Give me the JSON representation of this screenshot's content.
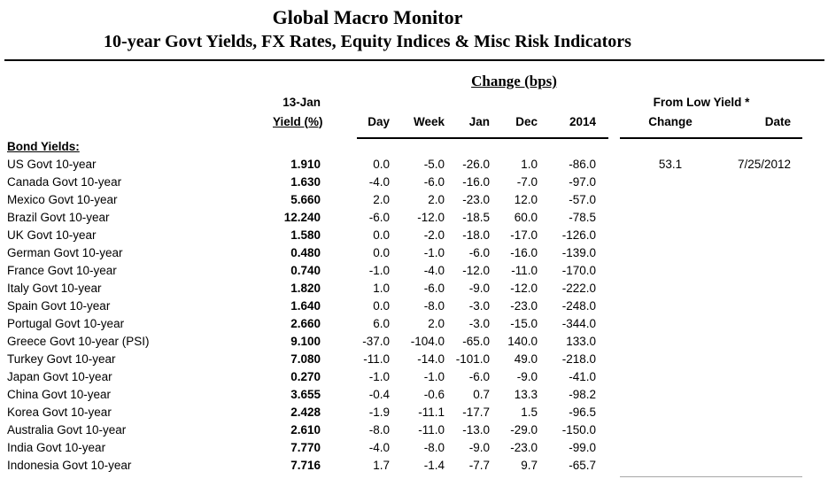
{
  "title": "Global Macro Monitor",
  "subtitle": "10-year Govt Yields, FX Rates, Equity Indices & Misc Risk Indicators",
  "table": {
    "change_bps_header": "Change (bps)",
    "col_date_label": "13-Jan",
    "col_yield_label": "Yield (%)",
    "col_day": "Day",
    "col_week": "Week",
    "col_jan": "Jan",
    "col_dec": "Dec",
    "col_2014": "2014",
    "from_low_header": "From Low Yield *",
    "col_fl_change": "Change",
    "col_fl_date": "Date",
    "section_label": "Bond Yields:",
    "rows": [
      {
        "name": "US Govt 10-year",
        "yield": "1.910",
        "day": "0.0",
        "week": "-5.0",
        "jan": "-26.0",
        "dec": "1.0",
        "y2014": "-86.0",
        "fl_change": "53.1",
        "fl_date": "7/25/2012"
      },
      {
        "name": "Canada Govt 10-year",
        "yield": "1.630",
        "day": "-4.0",
        "week": "-6.0",
        "jan": "-16.0",
        "dec": "-7.0",
        "y2014": "-97.0",
        "fl_change": "",
        "fl_date": ""
      },
      {
        "name": "Mexico Govt 10-year",
        "yield": "5.660",
        "day": "2.0",
        "week": "2.0",
        "jan": "-23.0",
        "dec": "12.0",
        "y2014": "-57.0",
        "fl_change": "",
        "fl_date": ""
      },
      {
        "name": "Brazil Govt 10-year",
        "yield": "12.240",
        "day": "-6.0",
        "week": "-12.0",
        "jan": "-18.5",
        "dec": "60.0",
        "y2014": "-78.5",
        "fl_change": "",
        "fl_date": ""
      },
      {
        "name": "UK Govt 10-year",
        "yield": "1.580",
        "day": "0.0",
        "week": "-2.0",
        "jan": "-18.0",
        "dec": "-17.0",
        "y2014": "-126.0",
        "fl_change": "",
        "fl_date": ""
      },
      {
        "name": "German Govt 10-year",
        "yield": "0.480",
        "day": "0.0",
        "week": "-1.0",
        "jan": "-6.0",
        "dec": "-16.0",
        "y2014": "-139.0",
        "fl_change": "",
        "fl_date": ""
      },
      {
        "name": "France Govt 10-year",
        "yield": "0.740",
        "day": "-1.0",
        "week": "-4.0",
        "jan": "-12.0",
        "dec": "-11.0",
        "y2014": "-170.0",
        "fl_change": "",
        "fl_date": ""
      },
      {
        "name": "Italy Govt 10-year",
        "yield": "1.820",
        "day": "1.0",
        "week": "-6.0",
        "jan": "-9.0",
        "dec": "-12.0",
        "y2014": "-222.0",
        "fl_change": "",
        "fl_date": ""
      },
      {
        "name": "Spain Govt 10-year",
        "yield": "1.640",
        "day": "0.0",
        "week": "-8.0",
        "jan": "-3.0",
        "dec": "-23.0",
        "y2014": "-248.0",
        "fl_change": "",
        "fl_date": ""
      },
      {
        "name": "Portugal Govt 10-year",
        "yield": "2.660",
        "day": "6.0",
        "week": "2.0",
        "jan": "-3.0",
        "dec": "-15.0",
        "y2014": "-344.0",
        "fl_change": "",
        "fl_date": ""
      },
      {
        "name": "Greece Govt 10-year (PSI)",
        "yield": "9.100",
        "day": "-37.0",
        "week": "-104.0",
        "jan": "-65.0",
        "dec": "140.0",
        "y2014": "133.0",
        "fl_change": "",
        "fl_date": ""
      },
      {
        "name": "Turkey Govt 10-year",
        "yield": "7.080",
        "day": "-11.0",
        "week": "-14.0",
        "jan": "-101.0",
        "dec": "49.0",
        "y2014": "-218.0",
        "fl_change": "",
        "fl_date": ""
      },
      {
        "name": "Japan Govt 10-year",
        "yield": "0.270",
        "day": "-1.0",
        "week": "-1.0",
        "jan": "-6.0",
        "dec": "-9.0",
        "y2014": "-41.0",
        "fl_change": "",
        "fl_date": ""
      },
      {
        "name": "China Govt 10-year",
        "yield": "3.655",
        "day": "-0.4",
        "week": "-0.6",
        "jan": "0.7",
        "dec": "13.3",
        "y2014": "-98.2",
        "fl_change": "",
        "fl_date": ""
      },
      {
        "name": "Korea Govt 10-year",
        "yield": "2.428",
        "day": "-1.9",
        "week": "-11.1",
        "jan": "-17.7",
        "dec": "1.5",
        "y2014": "-96.5",
        "fl_change": "",
        "fl_date": ""
      },
      {
        "name": "Australia Govt 10-year",
        "yield": "2.610",
        "day": "-8.0",
        "week": "-11.0",
        "jan": "-13.0",
        "dec": "-29.0",
        "y2014": "-150.0",
        "fl_change": "",
        "fl_date": ""
      },
      {
        "name": "India Govt 10-year",
        "yield": "7.770",
        "day": "-4.0",
        "week": "-8.0",
        "jan": "-9.0",
        "dec": "-23.0",
        "y2014": "-99.0",
        "fl_change": "",
        "fl_date": ""
      },
      {
        "name": "Indonesia Govt 10-year",
        "yield": "7.716",
        "day": "1.7",
        "week": "-1.4",
        "jan": "-7.7",
        "dec": "9.7",
        "y2014": "-65.7",
        "fl_change": "",
        "fl_date": ""
      }
    ]
  }
}
